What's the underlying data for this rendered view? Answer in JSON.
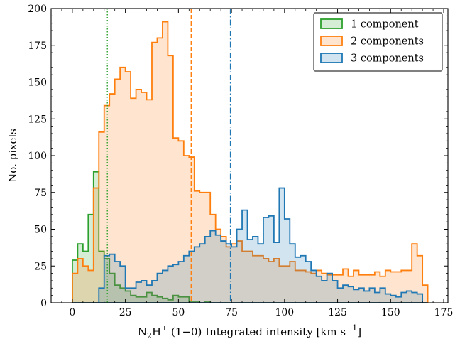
{
  "chart_data": {
    "type": "histogram",
    "bin_width": 2.5,
    "xlabel": "N₂H⁺ (1−0) Integrated intensity [km s⁻¹]",
    "xlabel_parts": {
      "pre": "N",
      "sub": "2",
      "mid": "H",
      "sup": "+",
      "post": " (1−0) Integrated intensity [km s",
      "unit_sup": "−1",
      "end": "]"
    },
    "ylabel": "No. pixels",
    "xlim": [
      -10,
      177
    ],
    "ylim": [
      0,
      200
    ],
    "xticks": [
      0,
      25,
      50,
      75,
      100,
      125,
      150,
      175
    ],
    "yticks": [
      0,
      25,
      50,
      75,
      100,
      125,
      150,
      175,
      200
    ],
    "legend_position": "top-right",
    "series": [
      {
        "name": "1 component",
        "color": "#2ca02c",
        "start": 0,
        "counts": [
          29,
          40,
          35,
          60,
          89,
          35,
          30,
          20,
          12,
          10,
          8,
          5,
          4,
          4,
          7,
          5,
          4,
          3,
          2,
          5,
          4,
          4,
          1,
          1,
          0,
          1,
          0,
          0,
          0,
          0,
          0,
          0,
          0,
          0,
          0,
          0,
          0,
          0,
          0,
          0,
          0,
          0,
          0,
          0,
          0,
          0,
          0,
          0,
          0,
          0,
          0,
          0,
          0,
          0,
          0,
          0,
          0,
          0,
          0,
          0,
          0,
          0,
          0,
          0,
          0,
          0,
          0
        ],
        "median": 16.5,
        "median_style": "dotted"
      },
      {
        "name": "2 components",
        "color": "#ff7f0e",
        "start": 0,
        "counts": [
          20,
          30,
          25,
          22,
          78,
          116,
          134,
          142,
          152,
          160,
          157,
          139,
          145,
          143,
          138,
          177,
          180,
          191,
          168,
          112,
          110,
          100,
          99,
          76,
          75,
          75,
          60,
          50,
          45,
          38,
          40,
          42,
          35,
          35,
          32,
          32,
          30,
          28,
          30,
          25,
          25,
          28,
          22,
          22,
          21,
          20,
          22,
          20,
          19,
          19,
          19,
          23,
          18,
          22,
          19,
          19,
          19,
          21,
          18,
          22,
          21,
          21,
          22,
          22,
          40,
          32,
          12
        ],
        "median": 56,
        "median_style": "dashed"
      },
      {
        "name": "3 components",
        "color": "#1f77b4",
        "start": 0,
        "counts": [
          0,
          0,
          0,
          0,
          0,
          10,
          32,
          33,
          28,
          25,
          10,
          10,
          14,
          15,
          12,
          15,
          20,
          22,
          25,
          26,
          28,
          32,
          35,
          38,
          40,
          45,
          49,
          46,
          42,
          40,
          38,
          50,
          63,
          43,
          45,
          40,
          58,
          59,
          41,
          78,
          57,
          40,
          31,
          32,
          28,
          22,
          18,
          15,
          20,
          15,
          10,
          12,
          11,
          9,
          10,
          8,
          10,
          7,
          10,
          6,
          5,
          4,
          7,
          8,
          7,
          6,
          0
        ],
        "median": 74.5,
        "median_style": "dashdot"
      }
    ]
  }
}
